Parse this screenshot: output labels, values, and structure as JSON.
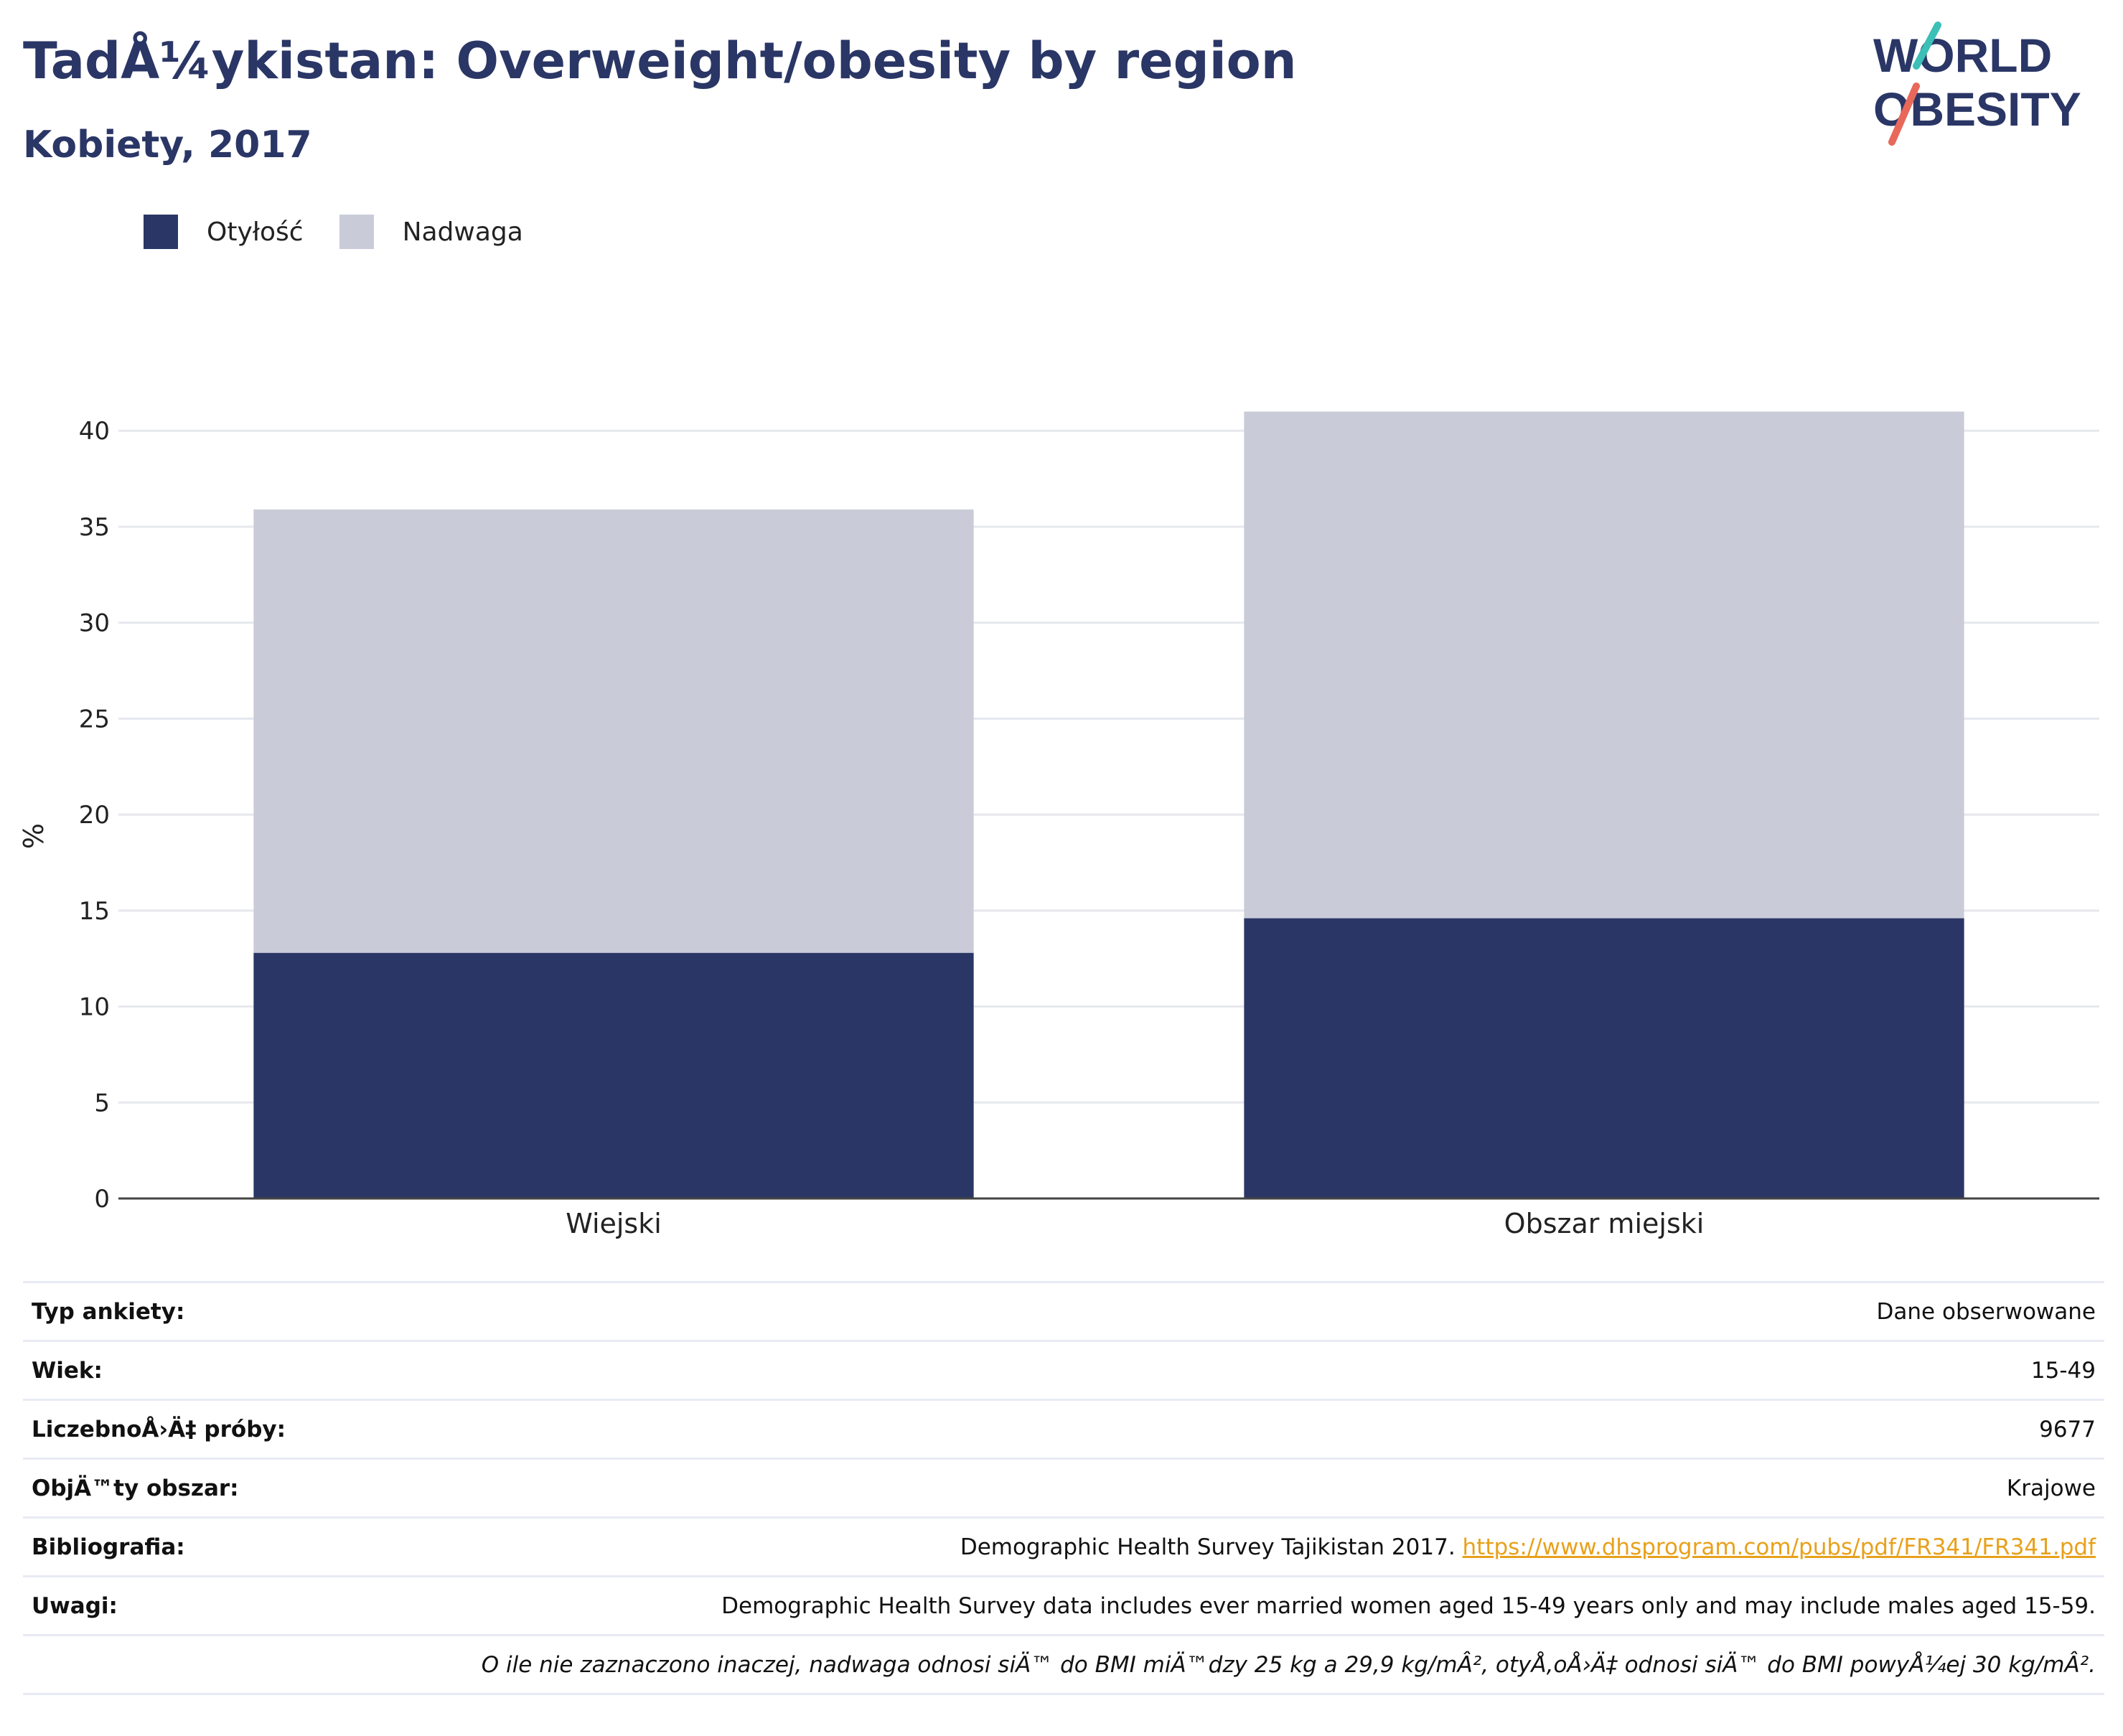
{
  "header": {
    "title": "TadÅ¼ykistan: Overweight/obesity by region",
    "subtitle": "Kobiety, 2017"
  },
  "logo": {
    "line1": "WORLD",
    "line2": "OBESITY"
  },
  "colors": {
    "obesity": "#2a3665",
    "overweight": "#c9ccd8",
    "title": "#2a3665",
    "link": "#e8a11c",
    "grid": "#e6e8ee"
  },
  "chart_data": {
    "type": "bar",
    "stacked": true,
    "categories": [
      "Wiejski",
      "Obszar miejski"
    ],
    "series": [
      {
        "name": "Otyłość",
        "values": [
          12.8,
          14.6
        ],
        "color": "#2a3665"
      },
      {
        "name": "Nadwaga",
        "values": [
          23.1,
          26.4
        ],
        "color": "#c9ccd8"
      }
    ],
    "ylabel": "%",
    "xlabel": "",
    "ylim": [
      0,
      43
    ],
    "yticks": [
      0,
      5,
      10,
      15,
      20,
      25,
      30,
      35,
      40
    ],
    "grid": true,
    "legend_position": "top-left"
  },
  "info": {
    "rows": [
      {
        "label": "Typ ankiety:",
        "value": "Dane obserwowane"
      },
      {
        "label": "Wiek:",
        "value": "15-49"
      },
      {
        "label": "LiczebnoÅ›Ä‡ próby:",
        "value": "9677"
      },
      {
        "label": "ObjÄ™ty obszar:",
        "value": "Krajowe"
      },
      {
        "label": "Bibliografia:",
        "value": "Demographic Health Survey Tajikistan 2017.",
        "link": "https://www.dhsprogram.com/pubs/pdf/FR341/FR341.pdf"
      },
      {
        "label": "Uwagi:",
        "value": "Demographic Health Survey data includes ever married women aged 15-49 years only and may include males aged 15-59."
      }
    ],
    "footnote": "O ile nie zaznaczono inaczej, nadwaga odnosi siÄ™ do BMI miÄ™dzy 25 kg a 29,9 kg/mÂ², otyÅ‚oÅ›Ä‡ odnosi siÄ™ do BMI powyÅ¼ej 30 kg/mÂ²."
  }
}
